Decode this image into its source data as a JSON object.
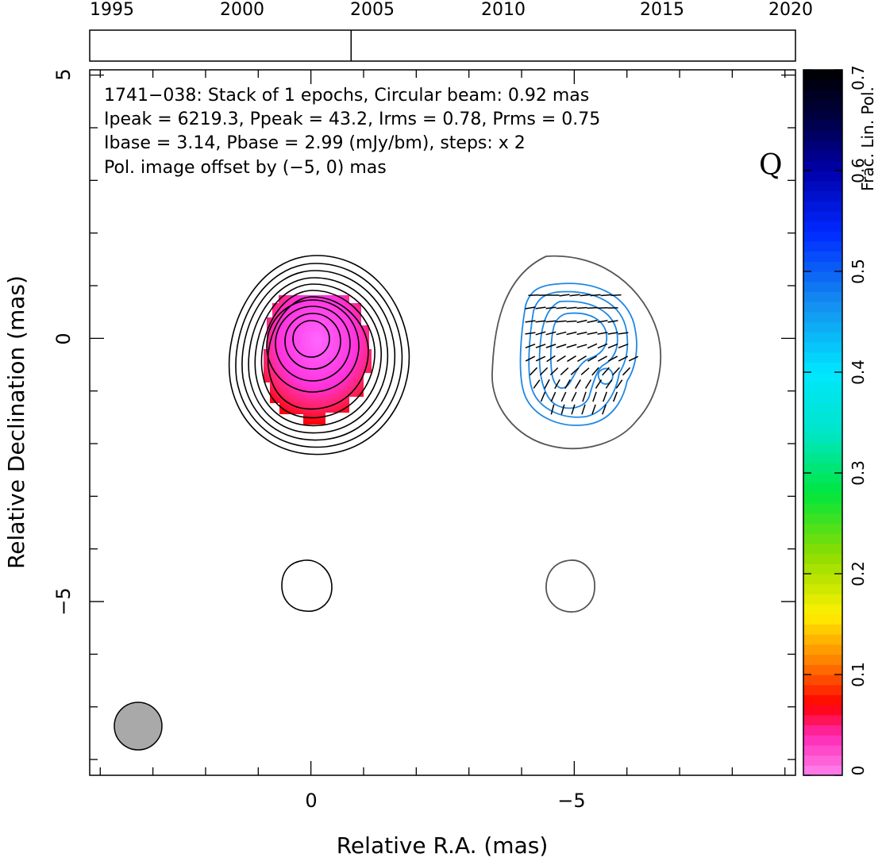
{
  "timeline": {
    "year_labels": [
      "1995",
      "2000",
      "2005",
      "2010",
      "2015",
      "2020"
    ],
    "year_range": [
      1993,
      2020
    ],
    "epoch_years": [
      2003.0
    ]
  },
  "plot": {
    "info_lines": [
      "1741−038: Stack of 1 epochs, Circular beam: 0.92 mas",
      "Ipeak = 6219.3, Ppeak = 43.2, Irms = 0.78, Prms = 0.75",
      "Ibase = 3.14, Pbase = 2.99 (mJy/bm), steps: x 2"
    ],
    "offset_note": "Pol. image offset by (−5, 0) mas",
    "band_label": "Q",
    "x_axis_label": "Relative R.A. (mas)",
    "y_axis_label": "Relative Declination (mas)",
    "x_tick_labels": [
      "0",
      "−5"
    ],
    "y_tick_labels": [
      "5",
      "0",
      "−5"
    ],
    "ra_range": [
      4.2,
      -9.2
    ],
    "dec_range": [
      -8.3,
      5.1
    ],
    "note_color": "#1e88e5"
  },
  "colorbar": {
    "label": "Frac. Lin. Pol.",
    "tick_labels": [
      "0",
      "0.1",
      "0.2",
      "0.3",
      "0.4",
      "0.5",
      "0.6",
      "0.7"
    ],
    "range": [
      0,
      0.7
    ]
  }
}
